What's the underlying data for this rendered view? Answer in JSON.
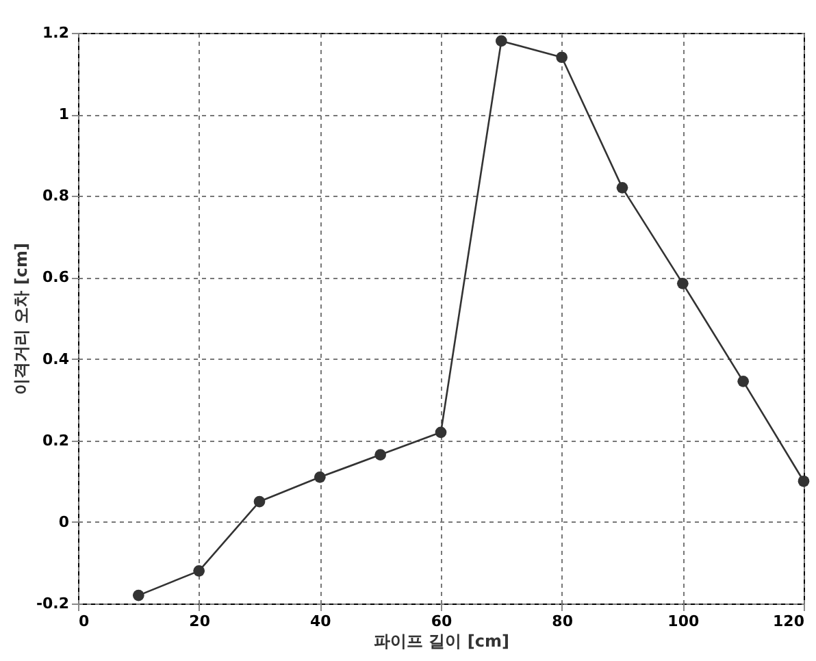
{
  "chart_data": {
    "type": "line",
    "xlabel": "파이프 길이 [cm]",
    "ylabel": "이격거리 오차 [cm]",
    "x": [
      10,
      20,
      30,
      40,
      50,
      60,
      70,
      80,
      90,
      100,
      110,
      120
    ],
    "series": [
      {
        "color": "#333333",
        "values": [
          -0.18,
          -0.12,
          0.05,
          0.11,
          0.165,
          0.22,
          1.18,
          1.14,
          0.82,
          0.585,
          0.345,
          0.1
        ]
      }
    ],
    "xlim": [
      0,
      120
    ],
    "xticks": [
      0,
      20,
      40,
      60,
      80,
      100,
      120
    ],
    "ylim": [
      -0.2,
      1.2
    ],
    "yticks": [
      -0.2,
      0,
      0.2,
      0.4,
      0.6,
      0.8,
      1,
      1.2
    ],
    "grid": true,
    "marker": "circle",
    "line_style": "solid"
  }
}
